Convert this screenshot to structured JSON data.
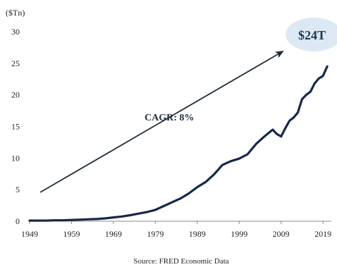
{
  "chart_data": {
    "type": "line",
    "unit_label": "($Tn)",
    "ylim": [
      0,
      30
    ],
    "yticks": [
      0,
      5,
      10,
      15,
      20,
      25,
      30
    ],
    "xlim": [
      1949,
      2021
    ],
    "xticks": [
      1949,
      1959,
      1969,
      1979,
      1989,
      1999,
      2009,
      2019
    ],
    "grid": false,
    "series": [
      {
        "color": "#15284a",
        "x": [
          1949,
          1951,
          1953,
          1955,
          1957,
          1959,
          1961,
          1963,
          1965,
          1967,
          1969,
          1971,
          1973,
          1975,
          1977,
          1979,
          1981,
          1983,
          1985,
          1987,
          1989,
          1991,
          1993,
          1995,
          1997,
          1999,
          2001,
          2003,
          2005,
          2007,
          2008,
          2009,
          2010,
          2011,
          2012,
          2013,
          2014,
          2015,
          2016,
          2017,
          2018,
          2019,
          2020
        ],
        "values": [
          0.1,
          0.1,
          0.1,
          0.15,
          0.15,
          0.2,
          0.25,
          0.3,
          0.35,
          0.45,
          0.6,
          0.75,
          0.95,
          1.2,
          1.45,
          1.8,
          2.4,
          3.0,
          3.6,
          4.4,
          5.4,
          6.2,
          7.4,
          8.9,
          9.5,
          9.9,
          10.6,
          12.2,
          13.4,
          14.5,
          13.8,
          13.4,
          14.7,
          15.9,
          16.4,
          17.2,
          19.3,
          20.0,
          20.5,
          21.8,
          22.6,
          23.0,
          24.5
        ]
      }
    ],
    "annotations": [
      {
        "text": "CAGR: 8%"
      },
      {
        "text": "$24T"
      }
    ],
    "source": "Source: FRED Economic Data"
  }
}
